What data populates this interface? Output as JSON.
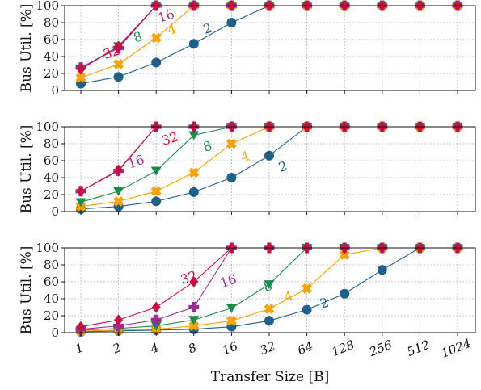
{
  "chart_data": {
    "type": "line",
    "xlabel": "Transfer Size [B]",
    "ylabel": "Bus Util. [%]",
    "x_ticks": [
      "1",
      "2",
      "4",
      "8",
      "16",
      "32",
      "64",
      "128",
      "256",
      "512",
      "1024"
    ],
    "x_scale": "log2",
    "y_ticks": [
      "0",
      "20",
      "40",
      "60",
      "80",
      "100"
    ],
    "ylim": [
      0,
      100
    ],
    "grid": true,
    "subplots": [
      {
        "series": [
          {
            "label": "2",
            "color": "#1f5f8b",
            "marker": "circle",
            "values": [
              8,
              16,
              33,
              55,
              80,
              100,
              100,
              100,
              100,
              100,
              100
            ]
          },
          {
            "label": "4",
            "color": "#f5a300",
            "marker": "x",
            "values": [
              15,
              31,
              62,
              100,
              100,
              100,
              100,
              100,
              100,
              100,
              100
            ]
          },
          {
            "label": "8",
            "color": "#1e8a4c",
            "marker": "triangle-down",
            "values": [
              26,
              52,
              100,
              100,
              100,
              100,
              100,
              100,
              100,
              100,
              100
            ]
          },
          {
            "label": "16",
            "color": "#9b2d91",
            "marker": "plus",
            "values": [
              27,
              50,
              100,
              100,
              100,
              100,
              100,
              100,
              100,
              100,
              100
            ]
          },
          {
            "label": "32",
            "color": "#c8103e",
            "marker": "diamond",
            "values": [
              25,
              52,
              100,
              100,
              100,
              100,
              100,
              100,
              100,
              100,
              100
            ]
          }
        ],
        "annotations": [
          {
            "text": "2",
            "color": "#1f5f8b",
            "x": 3.4,
            "y": 68
          },
          {
            "text": "4",
            "color": "#f5a300",
            "x": 2.45,
            "y": 67
          },
          {
            "text": "8",
            "color": "#1e8a4c",
            "x": 1.55,
            "y": 58
          },
          {
            "text": "16",
            "color": "#9b2d91",
            "x": 2.3,
            "y": 83
          },
          {
            "text": "32",
            "color": "#c8103e",
            "x": 0.85,
            "y": 40
          }
        ]
      },
      {
        "series": [
          {
            "label": "2",
            "color": "#1f5f8b",
            "marker": "circle",
            "values": [
              3,
              6,
              12,
              23,
              40,
              66,
              100,
              100,
              100,
              100,
              100
            ]
          },
          {
            "label": "4",
            "color": "#f5a300",
            "marker": "x",
            "values": [
              6,
              12,
              24,
              46,
              80,
              100,
              100,
              100,
              100,
              100,
              100
            ]
          },
          {
            "label": "8",
            "color": "#1e8a4c",
            "marker": "triangle-down",
            "values": [
              11,
              24,
              48,
              90,
              100,
              100,
              100,
              100,
              100,
              100,
              100
            ]
          },
          {
            "label": "16",
            "color": "#9b2d91",
            "marker": "plus",
            "values": [
              24,
              48,
              100,
              100,
              100,
              100,
              100,
              100,
              100,
              100,
              100
            ]
          },
          {
            "label": "32",
            "color": "#c8103e",
            "marker": "diamond",
            "values": [
              24,
              49,
              100,
              100,
              100,
              100,
              100,
              100,
              100,
              100,
              100
            ]
          }
        ],
        "annotations": [
          {
            "text": "2",
            "color": "#1f5f8b",
            "x": 5.4,
            "y": 48
          },
          {
            "text": "4",
            "color": "#f5a300",
            "x": 4.4,
            "y": 60
          },
          {
            "text": "8",
            "color": "#1e8a4c",
            "x": 3.4,
            "y": 72
          },
          {
            "text": "16",
            "color": "#9b2d91",
            "x": 1.5,
            "y": 54
          },
          {
            "text": "32",
            "color": "#c8103e",
            "x": 2.4,
            "y": 81
          }
        ]
      },
      {
        "series": [
          {
            "label": "2",
            "color": "#1f5f8b",
            "marker": "circle",
            "values": [
              1,
              2,
              3,
              4,
              7,
              14,
              27,
              46,
              74,
              100,
              100
            ]
          },
          {
            "label": "4",
            "color": "#f5a300",
            "marker": "x",
            "values": [
              2,
              3,
              4,
              8,
              14,
              28,
              52,
              92,
              100,
              100,
              100
            ]
          },
          {
            "label": "8",
            "color": "#1e8a4c",
            "marker": "triangle-down",
            "values": [
              3,
              5,
              8,
              15,
              29,
              57,
              100,
              100,
              100,
              100,
              100
            ]
          },
          {
            "label": "16",
            "color": "#9b2d91",
            "marker": "plus",
            "values": [
              4,
              8,
              15,
              30,
              100,
              100,
              100,
              100,
              100,
              100,
              100
            ]
          },
          {
            "label": "32",
            "color": "#c8103e",
            "marker": "diamond",
            "values": [
              7,
              15,
              30,
              60,
              100,
              100,
              100,
              100,
              100,
              100,
              100
            ]
          }
        ],
        "annotations": [
          {
            "text": "2",
            "color": "#1f5f8b",
            "x": 6.5,
            "y": 30
          },
          {
            "text": "4",
            "color": "#f5a300",
            "x": 5.55,
            "y": 38
          },
          {
            "text": "8",
            "color": "#1e8a4c",
            "x": 5.0,
            "y": 50
          },
          {
            "text": "16",
            "color": "#9b2d91",
            "x": 3.95,
            "y": 56
          },
          {
            "text": "32",
            "color": "#c8103e",
            "x": 2.9,
            "y": 60
          }
        ]
      }
    ]
  }
}
